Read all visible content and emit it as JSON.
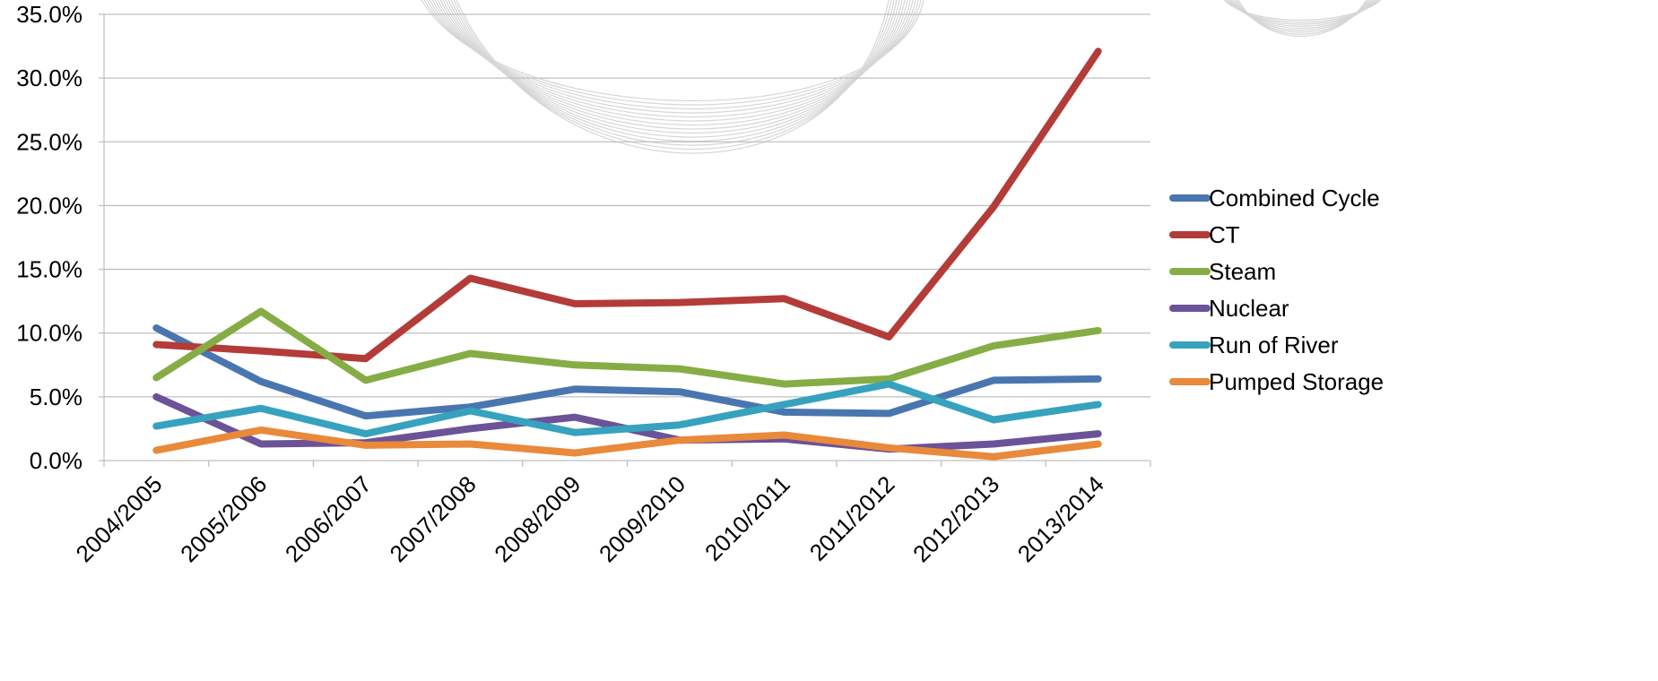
{
  "chart_data": {
    "type": "line",
    "title": "",
    "xlabel": "",
    "ylabel": "",
    "ylim": [
      0,
      35
    ],
    "yticks": [
      0,
      5,
      10,
      15,
      20,
      25,
      30,
      35
    ],
    "ytick_labels": [
      "0.0%",
      "5.0%",
      "10.0%",
      "15.0%",
      "20.0%",
      "25.0%",
      "30.0%",
      "35.0%"
    ],
    "categories": [
      "2004/2005",
      "2005/2006",
      "2006/2007",
      "2007/2008",
      "2008/2009",
      "2009/2010",
      "2010/2011",
      "2011/2012",
      "2012/2013",
      "2013/2014"
    ],
    "grid": true,
    "legend_position": "right",
    "series": [
      {
        "name": "Combined Cycle",
        "color": "#4a76b0",
        "values": [
          10.4,
          6.2,
          3.5,
          4.2,
          5.6,
          5.4,
          3.8,
          3.7,
          6.3,
          6.4
        ]
      },
      {
        "name": "CT",
        "color": "#b33c39",
        "values": [
          9.1,
          8.6,
          8.0,
          14.3,
          12.3,
          12.4,
          12.7,
          9.7,
          19.9,
          32.1
        ]
      },
      {
        "name": "Steam",
        "color": "#86ad45",
        "values": [
          6.5,
          11.7,
          6.3,
          8.4,
          7.5,
          7.2,
          6.0,
          6.4,
          9.0,
          10.2
        ]
      },
      {
        "name": "Nuclear",
        "color": "#6c5296",
        "values": [
          5.0,
          1.3,
          1.4,
          2.5,
          3.4,
          1.6,
          1.7,
          0.9,
          1.3,
          2.1
        ]
      },
      {
        "name": "Run of River",
        "color": "#37a2be",
        "values": [
          2.7,
          4.1,
          2.1,
          3.9,
          2.2,
          2.8,
          4.4,
          6.0,
          3.2,
          4.4
        ]
      },
      {
        "name": "Pumped Storage",
        "color": "#e9893a",
        "values": [
          0.8,
          2.4,
          1.2,
          1.3,
          0.6,
          1.6,
          2.0,
          1.0,
          0.3,
          1.3
        ]
      }
    ]
  }
}
